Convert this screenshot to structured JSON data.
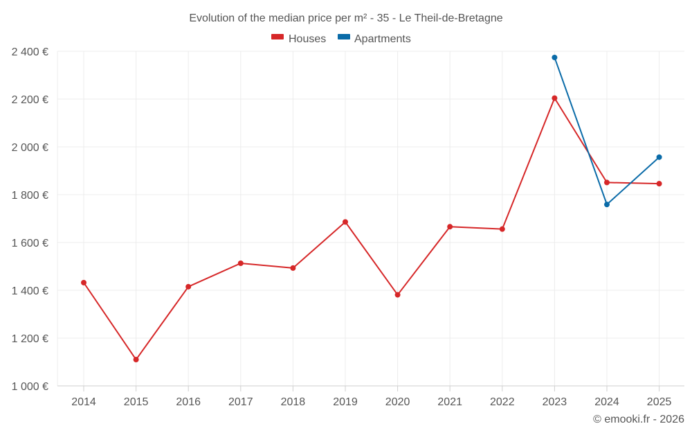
{
  "chart_data": {
    "type": "line",
    "title": "Evolution of the median price per m² - 35 - Le Theil-de-Bretagne",
    "categories": [
      "2014",
      "2015",
      "2016",
      "2017",
      "2018",
      "2019",
      "2020",
      "2021",
      "2022",
      "2023",
      "2024",
      "2025"
    ],
    "y_ticks": [
      1000,
      1200,
      1400,
      1600,
      1800,
      2000,
      2200,
      2400
    ],
    "y_tick_labels": [
      "1 000 €",
      "1 200 €",
      "1 400 €",
      "1 600 €",
      "1 800 €",
      "2 000 €",
      "2 200 €",
      "2 400 €"
    ],
    "ylim": [
      1000,
      2400
    ],
    "grid": true,
    "legend_position": "top-center",
    "series": [
      {
        "name": "Houses",
        "color": "#d62728",
        "values": [
          1432,
          1110,
          1415,
          1513,
          1493,
          1686,
          1381,
          1666,
          1656,
          2204,
          1851,
          1846
        ]
      },
      {
        "name": "Apartments",
        "color": "#0a6ba8",
        "values": [
          null,
          null,
          null,
          null,
          null,
          null,
          null,
          null,
          null,
          2374,
          1759,
          1957
        ]
      }
    ]
  },
  "credit": "© emooki.fr - 2026"
}
